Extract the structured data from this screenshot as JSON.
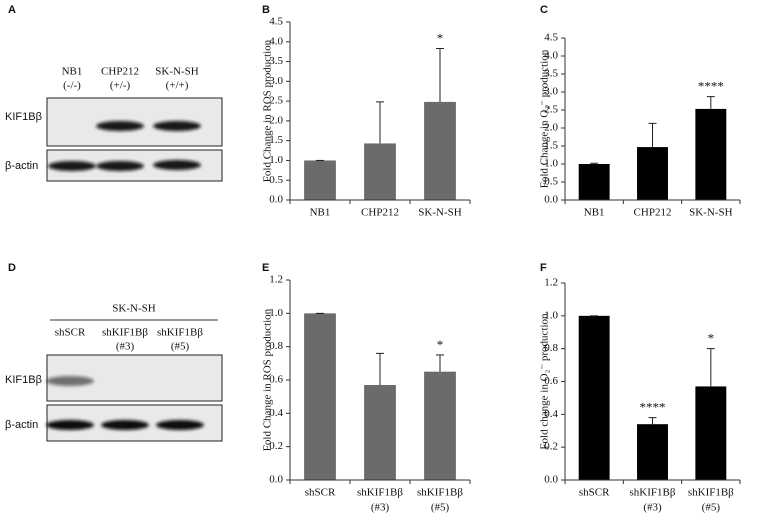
{
  "chart_data": [
    {
      "type": "bar",
      "panel": "B",
      "ylabel": "Fold Change in ROS production",
      "categories": [
        [
          "NB1"
        ],
        [
          "CHP212"
        ],
        [
          "SK-N-SH"
        ]
      ],
      "values": [
        1.0,
        1.43,
        2.48
      ],
      "errors": [
        0,
        1.05,
        1.35
      ],
      "annotations": [
        null,
        null,
        "*"
      ],
      "color": "#6b6b6b",
      "ylim": [
        0,
        4.5
      ],
      "yticks": [
        {
          "value": 0,
          "label": "0.0"
        },
        0.5,
        {
          "value": 1,
          "label": "1.0"
        },
        1.5,
        {
          "value": 2,
          "label": "2.0"
        },
        2.5,
        {
          "value": 3,
          "label": "3.0"
        },
        3.5,
        {
          "value": 4,
          "label": "4.0"
        },
        4.5
      ]
    },
    {
      "type": "bar",
      "panel": "C",
      "ylabel": "Fold Change in O₂⁻ production",
      "categories": [
        [
          "NB1"
        ],
        [
          "CHP212"
        ],
        [
          "SK-N-SH"
        ]
      ],
      "values": [
        1.0,
        1.47,
        2.53
      ],
      "errors": [
        0.02,
        0.66,
        0.34
      ],
      "annotations": [
        null,
        null,
        "****"
      ],
      "color": "#000000",
      "ylim": [
        0,
        4.5
      ],
      "yticks": [
        {
          "value": 0,
          "label": "0.0"
        },
        0.5,
        {
          "value": 1,
          "label": "1.0"
        },
        1.5,
        {
          "value": 2,
          "label": "2.0"
        },
        2.5,
        {
          "value": 3,
          "label": "3.0"
        },
        3.5,
        {
          "value": 4,
          "label": "4.0"
        },
        4.5
      ]
    },
    {
      "type": "bar",
      "panel": "E",
      "ylabel": "Fold Change in ROS production",
      "categories": [
        [
          "shSCR"
        ],
        [
          "shKIF1Bβ",
          "(#3)"
        ],
        [
          "shKIF1Bβ",
          "(#5)"
        ]
      ],
      "values": [
        1.0,
        0.57,
        0.65
      ],
      "errors": [
        0,
        0.19,
        0.1
      ],
      "annotations": [
        null,
        null,
        "*"
      ],
      "color": "#6b6b6b",
      "ylim": [
        0,
        1.2
      ],
      "yticks": [
        {
          "value": 0,
          "label": "0.0"
        },
        0.2,
        0.4,
        0.6,
        0.8,
        {
          "value": 1,
          "label": "1.0"
        },
        1.2
      ]
    },
    {
      "type": "bar",
      "panel": "F",
      "ylabel": "Fold change in O₂⁻ production",
      "categories": [
        [
          "shSCR"
        ],
        [
          "shKIF1Bβ",
          "(#3)"
        ],
        [
          "shKIF1Bβ",
          "(#5)"
        ]
      ],
      "values": [
        1.0,
        0.34,
        0.57
      ],
      "errors": [
        0,
        0.04,
        0.23
      ],
      "annotations": [
        null,
        "****",
        "*"
      ],
      "color": "#000000",
      "ylim": [
        0,
        1.2
      ],
      "yticks": [
        {
          "value": 0,
          "label": "0.0"
        },
        0.2,
        0.4,
        0.6,
        0.8,
        {
          "value": 1,
          "label": "1.0"
        },
        1.2
      ]
    }
  ],
  "blots": [
    {
      "panel": "A",
      "lanes": [
        [
          "NB1",
          "(-/-)"
        ],
        [
          "CHP212",
          "(+/-)"
        ],
        [
          "SK-N-SH",
          "(+/+)"
        ]
      ],
      "rows": [
        "KIF1Bβ",
        "β-actin"
      ]
    },
    {
      "panel": "D",
      "group": "SK-N-SH",
      "lanes": [
        [
          "shSCR"
        ],
        [
          "shKIF1Bβ",
          "(#3)"
        ],
        [
          "shKIF1Bβ",
          "(#5)"
        ]
      ],
      "rows": [
        "KIF1Bβ",
        "β-actin"
      ]
    }
  ]
}
